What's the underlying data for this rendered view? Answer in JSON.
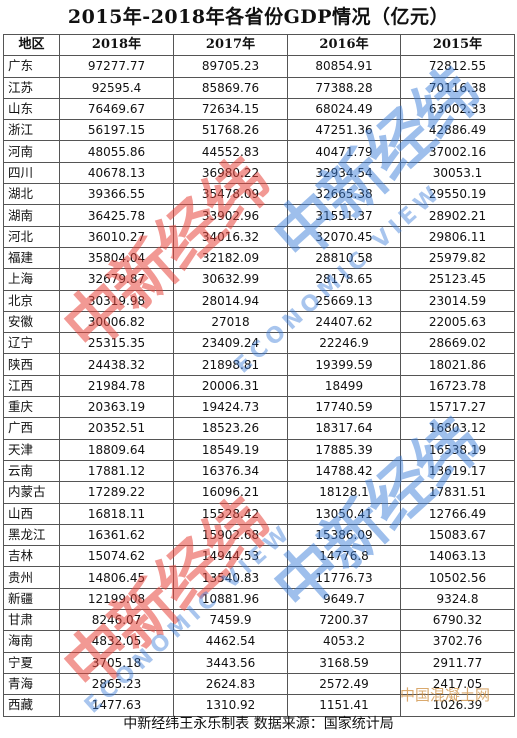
{
  "title": "2015年-2018年各省份GDP情况（亿元）",
  "columns": [
    "地区",
    "2018年",
    "2017年",
    "2016年",
    "2015年"
  ],
  "rows": [
    [
      "广东",
      "97277.77",
      "89705.23",
      "80854.91",
      "72812.55"
    ],
    [
      "江苏",
      "92595.4",
      "85869.76",
      "77388.28",
      "70116.38"
    ],
    [
      "山东",
      "76469.67",
      "72634.15",
      "68024.49",
      "63002.33"
    ],
    [
      "浙江",
      "56197.15",
      "51768.26",
      "47251.36",
      "42886.49"
    ],
    [
      "河南",
      "48055.86",
      "44552.83",
      "40471.79",
      "37002.16"
    ],
    [
      "四川",
      "40678.13",
      "36980.22",
      "32934.54",
      "30053.1"
    ],
    [
      "湖北",
      "39366.55",
      "35478.09",
      "32665.38",
      "29550.19"
    ],
    [
      "湖南",
      "36425.78",
      "33902.96",
      "31551.37",
      "28902.21"
    ],
    [
      "河北",
      "36010.27",
      "34016.32",
      "32070.45",
      "29806.11"
    ],
    [
      "福建",
      "35804.04",
      "32182.09",
      "28810.58",
      "25979.82"
    ],
    [
      "上海",
      "32679.87",
      "30632.99",
      "28178.65",
      "25123.45"
    ],
    [
      "北京",
      "30319.98",
      "28014.94",
      "25669.13",
      "23014.59"
    ],
    [
      "安徽",
      "30006.82",
      "27018",
      "24407.62",
      "22005.63"
    ],
    [
      "辽宁",
      "25315.35",
      "23409.24",
      "22246.9",
      "28669.02"
    ],
    [
      "陕西",
      "24438.32",
      "21898.81",
      "19399.59",
      "18021.86"
    ],
    [
      "江西",
      "21984.78",
      "20006.31",
      "18499",
      "16723.78"
    ],
    [
      "重庆",
      "20363.19",
      "19424.73",
      "17740.59",
      "15717.27"
    ],
    [
      "广西",
      "20352.51",
      "18523.26",
      "18317.64",
      "16803.12"
    ],
    [
      "天津",
      "18809.64",
      "18549.19",
      "17885.39",
      "16538.19"
    ],
    [
      "云南",
      "17881.12",
      "16376.34",
      "14788.42",
      "13619.17"
    ],
    [
      "内蒙古",
      "17289.22",
      "16096.21",
      "18128.1",
      "17831.51"
    ],
    [
      "山西",
      "16818.11",
      "15528.42",
      "13050.41",
      "12766.49"
    ],
    [
      "黑龙江",
      "16361.62",
      "15902.68",
      "15386.09",
      "15083.67"
    ],
    [
      "吉林",
      "15074.62",
      "14944.53",
      "14776.8",
      "14063.13"
    ],
    [
      "贵州",
      "14806.45",
      "13540.83",
      "11776.73",
      "10502.56"
    ],
    [
      "新疆",
      "12199.08",
      "10881.96",
      "9649.7",
      "9324.8"
    ],
    [
      "甘肃",
      "8246.07",
      "7459.9",
      "7200.37",
      "6790.32"
    ],
    [
      "海南",
      "4832.05",
      "4462.54",
      "4053.2",
      "3702.76"
    ],
    [
      "宁夏",
      "3705.18",
      "3443.56",
      "3168.59",
      "2911.77"
    ],
    [
      "青海",
      "2865.23",
      "2624.83",
      "2572.49",
      "2417.05"
    ],
    [
      "西藏",
      "1477.63",
      "1310.92",
      "1151.41",
      "1026.39"
    ]
  ],
  "footer": "中新经纬王永乐制表   数据来源：国家统计局",
  "watermarks": {
    "brand_cn": "中新经纬",
    "brand_en": "ECONOMIC VIEW",
    "corner": "中国混凝土网",
    "red": "#e8453c",
    "blue": "#3d7fd9"
  }
}
